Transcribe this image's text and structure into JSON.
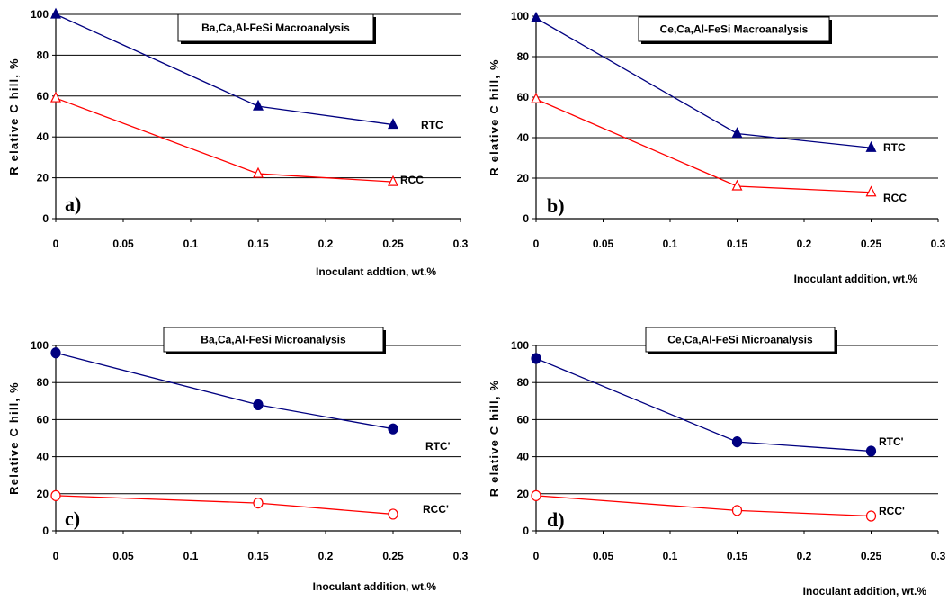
{
  "chart_data": [
    {
      "type": "line",
      "panel_label": "a)",
      "title": "Ba,Ca,Al-FeSi Macroanalysis",
      "xlabel": "Inoculant addtion, wt.%",
      "ylabel": "R elative C hill, %",
      "xlim": [
        0,
        0.3
      ],
      "ylim": [
        0,
        100
      ],
      "xticks": [
        "0",
        "0.05",
        "0.1",
        "0.15",
        "0.2",
        "0.25",
        "0.3"
      ],
      "yticks": [
        "0",
        "20",
        "40",
        "60",
        "80",
        "100"
      ],
      "grid": "horizontal",
      "series": [
        {
          "name": "RTC",
          "color": "#000080",
          "marker": "filled-triangle",
          "x": [
            0,
            0.15,
            0.25
          ],
          "y": [
            100,
            55,
            46
          ]
        },
        {
          "name": "RCC",
          "color": "#ff0000",
          "marker": "open-triangle",
          "x": [
            0,
            0.15,
            0.25
          ],
          "y": [
            59,
            22,
            18
          ]
        }
      ]
    },
    {
      "type": "line",
      "panel_label": "b)",
      "title": "Ce,Ca,Al-FeSi Macroanalysis",
      "xlabel": "Inoculant addition, wt.%",
      "ylabel": "R elative C hill, %",
      "xlim": [
        0,
        0.3
      ],
      "ylim": [
        0,
        100
      ],
      "xticks": [
        "0",
        "0.05",
        "0.1",
        "0.15",
        "0.2",
        "0.25",
        "0.3"
      ],
      "yticks": [
        "0",
        "20",
        "40",
        "60",
        "80",
        "100"
      ],
      "grid": "horizontal",
      "series": [
        {
          "name": "RTC",
          "color": "#000080",
          "marker": "filled-triangle",
          "x": [
            0,
            0.15,
            0.25
          ],
          "y": [
            99,
            42,
            35
          ]
        },
        {
          "name": "RCC",
          "color": "#ff0000",
          "marker": "open-triangle",
          "x": [
            0,
            0.15,
            0.25
          ],
          "y": [
            59,
            16,
            13
          ]
        }
      ]
    },
    {
      "type": "line",
      "panel_label": "c)",
      "title": "Ba,Ca,Al-FeSi Microanalysis",
      "xlabel": "Inoculant addition, wt.%",
      "ylabel": "Relative C hill, %",
      "xlim": [
        0,
        0.3
      ],
      "ylim": [
        0,
        100
      ],
      "xticks": [
        "0",
        "0.05",
        "0.1",
        "0.15",
        "0.2",
        "0.25",
        "0.3"
      ],
      "yticks": [
        "0",
        "20",
        "40",
        "60",
        "80",
        "100"
      ],
      "grid": "horizontal",
      "series": [
        {
          "name": "RTC'",
          "color": "#000080",
          "marker": "filled-circle",
          "x": [
            0,
            0.15,
            0.25
          ],
          "y": [
            96,
            68,
            55
          ]
        },
        {
          "name": "RCC'",
          "color": "#ff0000",
          "marker": "open-circle",
          "x": [
            0,
            0.15,
            0.25
          ],
          "y": [
            19,
            15,
            9
          ]
        }
      ]
    },
    {
      "type": "line",
      "panel_label": "d)",
      "title": "Ce,Ca,Al-FeSi Microanalysis",
      "xlabel": "Inoculant addition, wt.%",
      "ylabel": "R elative C hill, %",
      "xlim": [
        0,
        0.3
      ],
      "ylim": [
        0,
        100
      ],
      "xticks": [
        "0",
        "0.05",
        "0.1",
        "0.15",
        "0.2",
        "0.25",
        "0.3"
      ],
      "yticks": [
        "0",
        "20",
        "40",
        "60",
        "80",
        "100"
      ],
      "grid": "horizontal",
      "series": [
        {
          "name": "RTC'",
          "color": "#000080",
          "marker": "filled-circle",
          "x": [
            0,
            0.15,
            0.25
          ],
          "y": [
            93,
            48,
            43
          ]
        },
        {
          "name": "RCC'",
          "color": "#ff0000",
          "marker": "open-circle",
          "x": [
            0,
            0.15,
            0.25
          ],
          "y": [
            19,
            11,
            8
          ]
        }
      ]
    }
  ]
}
